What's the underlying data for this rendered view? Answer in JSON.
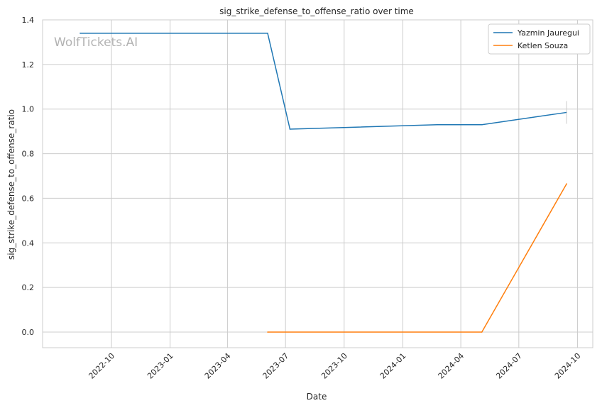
{
  "chart_data": {
    "type": "line",
    "title": "sig_strike_defense_to_offense_ratio over time",
    "xlabel": "Date",
    "ylabel": "sig_strike_defense_to_offense_ratio",
    "watermark": "WolfTickets.AI",
    "x_ticks": [
      "2022-10",
      "2023-01",
      "2023-04",
      "2023-07",
      "2023-10",
      "2024-01",
      "2024-04",
      "2024-07",
      "2024-10"
    ],
    "y_ticks": [
      "0.0",
      "0.2",
      "0.4",
      "0.6",
      "0.8",
      "1.0",
      "1.2",
      "1.4"
    ],
    "xlim": [
      "2022-06-15",
      "2024-10-25"
    ],
    "ylim": [
      -0.07,
      1.4
    ],
    "grid": true,
    "legend_position": "top-right",
    "series": [
      {
        "name": "Yazmin Jauregui",
        "color": "#1f77b4",
        "points": [
          {
            "x": "2022-08-13",
            "y": 1.34
          },
          {
            "x": "2023-06-03",
            "y": 1.34
          },
          {
            "x": "2023-07-08",
            "y": 0.91
          },
          {
            "x": "2024-02-24",
            "y": 0.93
          },
          {
            "x": "2024-05-04",
            "y": 0.93
          },
          {
            "x": "2024-09-14",
            "y": 0.985
          }
        ]
      },
      {
        "name": "Ketlen Souza",
        "color": "#ff7f0e",
        "points": [
          {
            "x": "2023-06-03",
            "y": 0.0
          },
          {
            "x": "2024-05-04",
            "y": 0.0
          },
          {
            "x": "2024-09-14",
            "y": 0.665
          }
        ]
      }
    ]
  }
}
